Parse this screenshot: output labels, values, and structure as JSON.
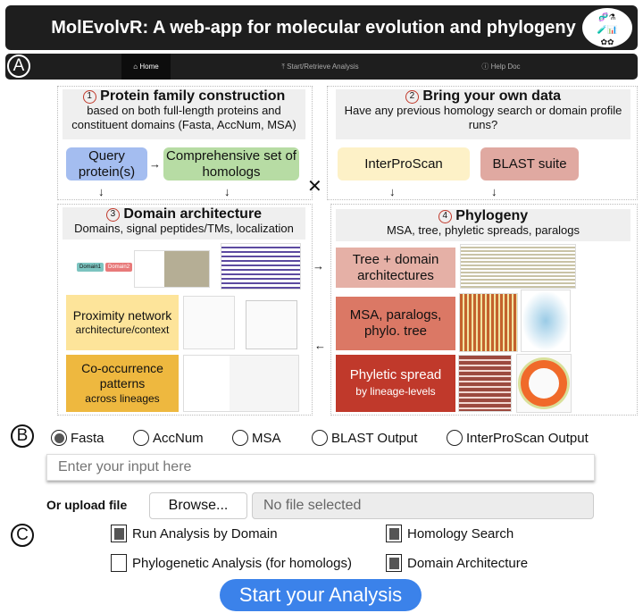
{
  "header": {
    "title": "MolEvolvR: A web-app for molecular evolution and phylogeny",
    "logo_alt": "MolEvolvR"
  },
  "nav": {
    "marker": "A",
    "tabs": [
      {
        "label": "Home",
        "icon": "home-icon",
        "active": true
      },
      {
        "label": "Start/Retrieve Analysis",
        "icon": "upload-icon"
      },
      {
        "label": "Help Doc",
        "icon": "help-circle-icon"
      }
    ]
  },
  "figure": {
    "p1": {
      "num": "1",
      "title": "Protein family construction",
      "sub": "based on both full-length proteins and constituent domains (Fasta, AccNum, MSA)",
      "boxes": [
        "Query protein(s)",
        "Comprehensive set of homologs"
      ]
    },
    "p2": {
      "num": "2",
      "title": "Bring your own data",
      "sub": "Have any previous homology search or domain profile runs?",
      "boxes": [
        "InterProScan",
        "BLAST suite"
      ]
    },
    "p3": {
      "num": "3",
      "title": "Domain architecture",
      "sub": "Domains, signal peptides/TMs, localization",
      "domains": [
        "Domain1",
        "Domain2"
      ],
      "boxes": [
        {
          "main": "Proximity network",
          "small": "architecture/context"
        },
        {
          "main": "Co-occurrence patterns",
          "small": "across lineages"
        }
      ]
    },
    "p4": {
      "num": "4",
      "title": "Phylogeny",
      "sub": "MSA, tree, phyletic spreads, paralogs",
      "boxes": [
        {
          "main": "Tree + domain architectures",
          "small": ""
        },
        {
          "main": "MSA, paralogs, phylo. tree",
          "small": ""
        },
        {
          "main": "Phyletic spread",
          "small": "by lineage-levels"
        }
      ]
    },
    "colors": {
      "query": "#a4bdf0",
      "homologs": "#b7dca4",
      "interpro": "#fdf1c7",
      "blast": "#e0a9a1",
      "proximity": "#fde49a",
      "cooccurrence": "#eeb83f",
      "tree": "#e5b0a6",
      "msa": "#db7865",
      "phyletic": "#c0392b"
    }
  },
  "form": {
    "marker_b": "B",
    "marker_c": "C",
    "input_types": [
      {
        "label": "Fasta",
        "selected": true
      },
      {
        "label": "AccNum"
      },
      {
        "label": "MSA"
      },
      {
        "label": "BLAST Output"
      },
      {
        "label": "InterProScan Output"
      }
    ],
    "input_placeholder": "Enter your input here",
    "upload_label": "Or upload file",
    "browse_label": "Browse...",
    "file_status": "No file selected",
    "options": [
      {
        "label": "Run Analysis by Domain",
        "checked": true
      },
      {
        "label": "Homology Search",
        "checked": true
      },
      {
        "label": "Phylogenetic Analysis (for homologs)",
        "checked": false
      },
      {
        "label": "Domain Architecture",
        "checked": true
      }
    ],
    "submit_label": "Start your Analysis",
    "submit_color": "#3b82ea"
  }
}
